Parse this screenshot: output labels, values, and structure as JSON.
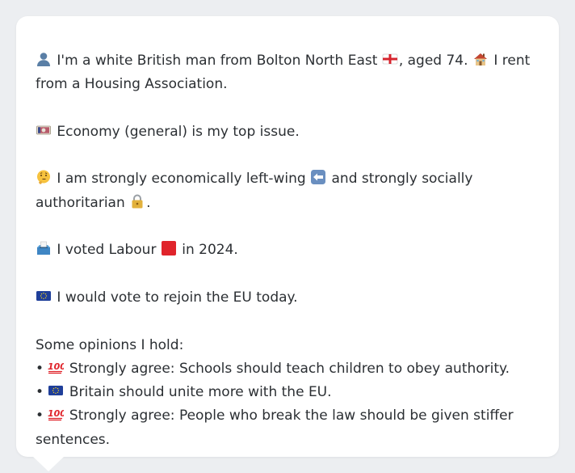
{
  "intro": {
    "text_1": "I'm a white British man from Bolton North East",
    "text_2": ", aged 74.",
    "text_3": "I rent from a Housing Association."
  },
  "issue": {
    "text": "Economy (general) is my top issue."
  },
  "ideology": {
    "text_1": "I am strongly economically left-wing",
    "text_2": "and strongly socially authoritarian",
    "text_3": "."
  },
  "vote": {
    "text_1": "I voted Labour",
    "text_2": "in 2024."
  },
  "eu": {
    "text": "I would vote to rejoin the EU today."
  },
  "opinions": {
    "heading": "Some opinions I hold:",
    "bullet": "•",
    "items": [
      {
        "text": "Strongly agree: Schools should teach children to obey authority."
      },
      {
        "text": "Britain should unite more with the EU."
      },
      {
        "text": "Strongly agree: People who break the law should be given stiffer sentences."
      }
    ]
  },
  "icons": {
    "person": "person-silhouette-icon",
    "england_flag": "england-flag-icon",
    "house": "house-icon",
    "money": "banknote-icon",
    "thinking": "thinking-face-icon",
    "left_arrow": "left-arrow-icon",
    "lock": "lock-icon",
    "ballot": "ballot-box-icon",
    "red_square": "red-square-icon",
    "eu_flag": "eu-flag-icon",
    "hundred": "hundred-points-icon"
  },
  "colors": {
    "background": "#eceef1",
    "card": "#ffffff",
    "text": "#2b2f33",
    "labour_red": "#e0242b",
    "eu_blue": "#1f3f9a"
  }
}
